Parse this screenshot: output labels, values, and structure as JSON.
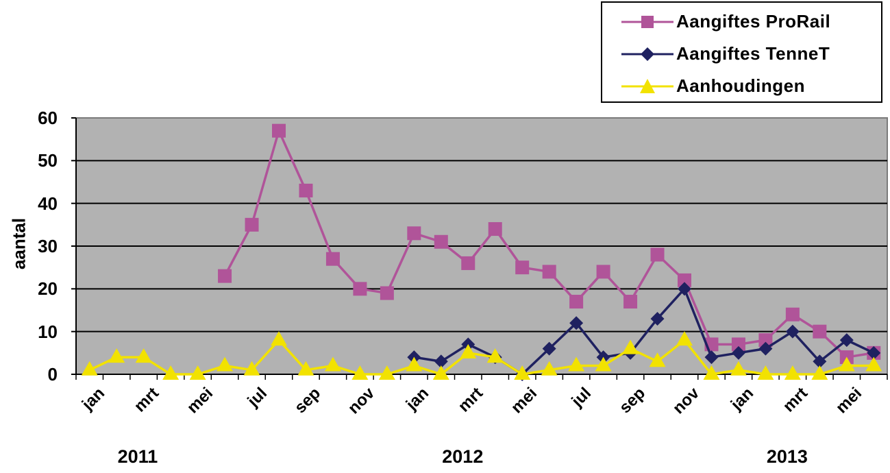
{
  "chart_data": {
    "type": "line",
    "title": "",
    "xlabel": "",
    "ylabel": "aantal",
    "ylim": [
      0,
      60
    ],
    "yticks": [
      0,
      10,
      20,
      30,
      40,
      50,
      60
    ],
    "grid": true,
    "legend_position": "top-right",
    "plot_background": "#b2b2b2",
    "x": [
      "jan 2011",
      "feb 2011",
      "mrt 2011",
      "apr 2011",
      "mei 2011",
      "jun 2011",
      "jul 2011",
      "aug 2011",
      "sep 2011",
      "okt 2011",
      "nov 2011",
      "dec 2011",
      "jan 2012",
      "feb 2012",
      "mrt 2012",
      "apr 2012",
      "mei 2012",
      "jun 2012",
      "jul 2012",
      "aug 2012",
      "sep 2012",
      "okt 2012",
      "nov 2012",
      "dec 2012",
      "jan 2013",
      "feb 2013",
      "mrt 2013",
      "apr 2013",
      "mei 2013",
      "jun 2013"
    ],
    "tick_labels": [
      "jan",
      "",
      "mrt",
      "",
      "mei",
      "",
      "jul",
      "",
      "sep",
      "",
      "nov",
      "",
      "jan",
      "",
      "mrt",
      "",
      "mei",
      "",
      "jul",
      "",
      "sep",
      "",
      "nov",
      "",
      "jan",
      "",
      "mrt",
      "",
      "mei",
      ""
    ],
    "year_labels": [
      {
        "label": "2011",
        "index": 2
      },
      {
        "label": "2012",
        "index": 14
      },
      {
        "label": "2013",
        "index": 26
      }
    ],
    "series": [
      {
        "name": "Aangiftes ProRail",
        "color": "#b05499",
        "marker": "square",
        "values": [
          null,
          null,
          null,
          null,
          null,
          23,
          35,
          57,
          43,
          27,
          20,
          19,
          33,
          31,
          26,
          34,
          25,
          24,
          17,
          24,
          17,
          28,
          22,
          7,
          7,
          8,
          14,
          10,
          4,
          5
        ]
      },
      {
        "name": "Aangiftes TenneT",
        "color": "#1f2160",
        "marker": "diamond",
        "values": [
          null,
          null,
          null,
          null,
          null,
          null,
          null,
          null,
          null,
          null,
          null,
          null,
          4,
          3,
          7,
          4,
          0,
          6,
          12,
          4,
          5,
          13,
          20,
          4,
          5,
          6,
          10,
          3,
          8,
          5
        ]
      },
      {
        "name": "Aanhoudingen",
        "color": "#f2e200",
        "marker": "triangle",
        "values": [
          1,
          4,
          4,
          0,
          0,
          2,
          1,
          8,
          1,
          2,
          0,
          0,
          2,
          0,
          5,
          4,
          0,
          1,
          2,
          2,
          6,
          3,
          8,
          0,
          1,
          0,
          0,
          0,
          2,
          2
        ]
      }
    ]
  }
}
